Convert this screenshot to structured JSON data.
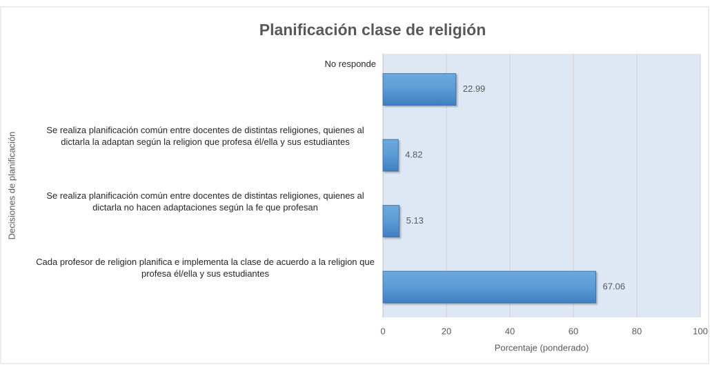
{
  "chart_data": {
    "type": "barh",
    "title": "Planificación clase de religión",
    "x_label": "Porcentaje (ponderado)",
    "y_label": "Decisiones de planificación",
    "categories": [
      "No responde",
      "Se realiza planificación común entre docentes de distintas religiones, quienes al dictarla la adaptan según la religion que profesa él/ella y sus estudiantes",
      "Se realiza planificación común entre docentes de distintas religiones, quienes al dictarla no hacen adaptaciones según la fe que profesan",
      "Cada profesor de religion planifica e implementa la clase de acuerdo a la religion que profesa él/ella y sus estudiantes"
    ],
    "values": [
      22.99,
      4.82,
      5.13,
      67.06
    ],
    "color": "#5b9bd5",
    "xlim": [
      0,
      100
    ],
    "xticks": [
      0,
      20,
      40,
      60,
      80,
      100
    ],
    "grid": true
  }
}
